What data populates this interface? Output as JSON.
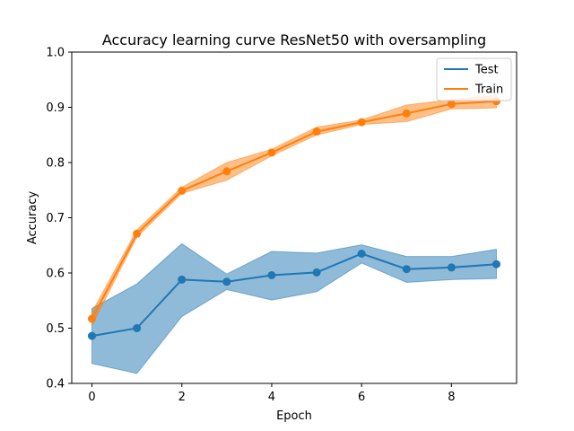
{
  "chart_data": {
    "type": "line",
    "title": "Accuracy learning curve ResNet50 with oversampling",
    "xlabel": "Epoch",
    "ylabel": "Accuracy",
    "xlim": [
      -0.45,
      9.45
    ],
    "ylim": [
      0.4,
      1.0
    ],
    "xticks": [
      0,
      2,
      4,
      6,
      8
    ],
    "yticks": [
      0.4,
      0.5,
      0.6,
      0.7,
      0.8,
      0.9,
      1.0
    ],
    "xtick_labels": [
      "0",
      "2",
      "4",
      "6",
      "8"
    ],
    "ytick_labels": [
      "0.4",
      "0.5",
      "0.6",
      "0.7",
      "0.8",
      "0.9",
      "1.0"
    ],
    "legend_position": "top-right",
    "grid": false,
    "x": [
      0,
      1,
      2,
      3,
      4,
      5,
      6,
      7,
      8,
      9
    ],
    "series": [
      {
        "name": "Test",
        "color": "#1f77b4",
        "values": [
          0.486,
          0.5,
          0.588,
          0.584,
          0.596,
          0.601,
          0.635,
          0.607,
          0.61,
          0.616
        ],
        "lower": [
          0.436,
          0.418,
          0.521,
          0.57,
          0.551,
          0.566,
          0.618,
          0.583,
          0.588,
          0.59
        ],
        "upper": [
          0.536,
          0.58,
          0.653,
          0.598,
          0.639,
          0.636,
          0.651,
          0.63,
          0.63,
          0.643
        ]
      },
      {
        "name": "Train",
        "color": "#ff7f0e",
        "values": [
          0.517,
          0.671,
          0.749,
          0.784,
          0.818,
          0.856,
          0.873,
          0.889,
          0.906,
          0.911
        ],
        "lower": [
          0.505,
          0.665,
          0.744,
          0.768,
          0.812,
          0.85,
          0.869,
          0.874,
          0.897,
          0.899
        ],
        "upper": [
          0.529,
          0.678,
          0.755,
          0.8,
          0.824,
          0.864,
          0.877,
          0.904,
          0.914,
          0.922
        ]
      }
    ]
  }
}
